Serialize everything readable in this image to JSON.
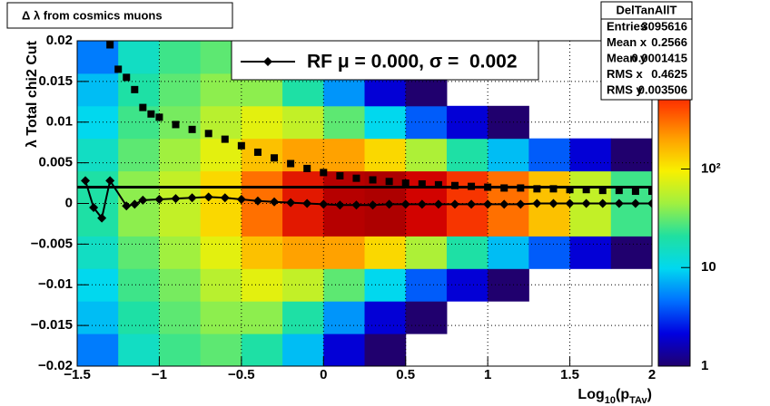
{
  "chart_data": {
    "type": "heatmap",
    "title": "Δ λ from cosmics muons",
    "y_label": "λ  Total chi2 Cut",
    "x_label": [
      {
        "text": "Log"
      },
      {
        "text": "10",
        "sub": true
      },
      {
        "text": "(p"
      },
      {
        "text": "TAv",
        "sub": true
      },
      {
        "text": ")"
      }
    ],
    "xlim": [
      -1.5,
      2
    ],
    "ylim": [
      -0.02,
      0.02
    ],
    "xticks": [
      {
        "value": -1.5,
        "label": "−1.5"
      },
      {
        "value": -1,
        "label": "−1"
      },
      {
        "value": -0.5,
        "label": "−0.5"
      },
      0,
      0.5,
      1,
      1.5,
      2
    ],
    "yticks": [
      {
        "value": -0.02,
        "label": "−0.02"
      },
      {
        "value": -0.015,
        "label": "−0.015"
      },
      {
        "value": -0.01,
        "label": "−0.01"
      },
      {
        "value": -0.005,
        "label": "−0.005"
      },
      0,
      0.005,
      0.01,
      0.015,
      0.02
    ],
    "grid": true,
    "zlim": [
      1,
      2000
    ],
    "zlog": true,
    "zticks": [
      1,
      10,
      {
        "value": 100,
        "label": "10²"
      }
    ],
    "palette": [
      "#20006e",
      "#0000e0",
      "#0070ff",
      "#00d8f0",
      "#20e0a0",
      "#a0f040",
      "#f8f000",
      "#ffa000",
      "#ff4000",
      "#d00000",
      "#800000"
    ],
    "heatmap": {
      "xbins": [
        -1.5,
        -1.25,
        -1,
        -0.75,
        -0.5,
        -0.25,
        0,
        0.25,
        0.5,
        0.75,
        1,
        1.25,
        1.5,
        1.75,
        2
      ],
      "ybins": [
        -0.02,
        -0.016,
        -0.012,
        -0.008,
        -0.004,
        0,
        0.004,
        0.008,
        0.012,
        0.016,
        0.02
      ],
      "counts": [
        [
          5,
          15,
          25,
          30,
          20,
          8,
          2,
          1,
          0,
          0,
          0,
          0,
          0,
          0
        ],
        [
          8,
          20,
          30,
          40,
          40,
          20,
          6,
          2,
          1,
          0,
          0,
          0,
          0,
          0
        ],
        [
          10,
          25,
          35,
          55,
          80,
          60,
          30,
          10,
          4,
          2,
          1,
          0,
          0,
          0
        ],
        [
          15,
          30,
          45,
          80,
          150,
          200,
          200,
          120,
          50,
          20,
          8,
          4,
          2,
          1
        ],
        [
          20,
          40,
          60,
          120,
          300,
          700,
          1200,
          1300,
          900,
          500,
          300,
          150,
          60,
          25
        ],
        [
          20,
          40,
          60,
          120,
          300,
          700,
          1200,
          1300,
          900,
          500,
          300,
          150,
          60,
          25
        ],
        [
          15,
          30,
          45,
          80,
          150,
          200,
          200,
          120,
          50,
          20,
          8,
          4,
          2,
          1
        ],
        [
          10,
          25,
          35,
          55,
          80,
          60,
          30,
          10,
          4,
          2,
          1,
          0,
          0,
          0
        ],
        [
          8,
          20,
          30,
          40,
          40,
          20,
          6,
          2,
          1,
          0,
          0,
          0,
          0,
          0
        ],
        [
          5,
          15,
          25,
          30,
          20,
          8,
          2,
          1,
          0,
          0,
          0,
          0,
          0,
          0
        ]
      ]
    },
    "hlines": [
      0.002
    ],
    "series": [
      {
        "name": "RF μ = 0.000, σ =  0.002",
        "color": "#000000",
        "marker": "diamond",
        "line": true,
        "x": [
          -1.45,
          -1.4,
          -1.35,
          -1.3,
          -1.2,
          -1.15,
          -1.1,
          -1.0,
          -0.9,
          -0.8,
          -0.7,
          -0.6,
          -0.5,
          -0.4,
          -0.3,
          -0.2,
          -0.1,
          0,
          0.1,
          0.2,
          0.3,
          0.4,
          0.5,
          0.6,
          0.7,
          0.8,
          0.9,
          1.0,
          1.1,
          1.2,
          1.3,
          1.4,
          1.5,
          1.6,
          1.7,
          1.8,
          1.9,
          2.0
        ],
        "values": [
          0.0028,
          -0.0005,
          -0.0018,
          0.0028,
          -0.0003,
          -0.0001,
          0.0004,
          0.0005,
          0.0006,
          0.0007,
          0.0008,
          0.0007,
          0.0005,
          0.0003,
          0.0002,
          0.0001,
          0,
          -0.0001,
          -0.0002,
          -0.0002,
          -0.0002,
          -0.0001,
          -0.0001,
          -0.0001,
          -0.0001,
          -0.0001,
          -0.0001,
          -0.0001,
          -0.0001,
          -0.0001,
          0,
          0,
          0,
          0,
          0,
          0,
          0,
          0
        ]
      },
      {
        "color": "#000000",
        "marker": "square",
        "line": false,
        "x": [
          -1.3,
          -1.25,
          -1.2,
          -1.15,
          -1.1,
          -1.05,
          -1.0,
          -0.9,
          -0.8,
          -0.7,
          -0.6,
          -0.5,
          -0.4,
          -0.3,
          -0.2,
          -0.1,
          0,
          0.1,
          0.2,
          0.3,
          0.4,
          0.5,
          0.6,
          0.7,
          0.8,
          0.9,
          1.0,
          1.1,
          1.2,
          1.3,
          1.4,
          1.5,
          1.6,
          1.7,
          1.8,
          1.9,
          2.0
        ],
        "values": [
          0.0195,
          0.0165,
          0.0155,
          0.014,
          0.0118,
          0.011,
          0.0106,
          0.0097,
          0.0091,
          0.0086,
          0.0079,
          0.0071,
          0.0063,
          0.0056,
          0.0049,
          0.0043,
          0.0038,
          0.0034,
          0.0031,
          0.0029,
          0.0027,
          0.0025,
          0.0024,
          0.0023,
          0.0022,
          0.0021,
          0.002,
          0.0019,
          0.0019,
          0.0018,
          0.0018,
          0.0017,
          0.0017,
          0.0016,
          0.0016,
          0.0015,
          0.0015
        ]
      }
    ],
    "stats": {
      "title": "DelTanAllT",
      "rows": [
        [
          "Entries",
          "3095616"
        ],
        [
          "Mean x",
          "0.2566"
        ],
        [
          "Mean y",
          "0.0001415"
        ],
        [
          "RMS x",
          "0.4625"
        ],
        [
          "RMS y",
          "0.003506"
        ]
      ]
    }
  }
}
